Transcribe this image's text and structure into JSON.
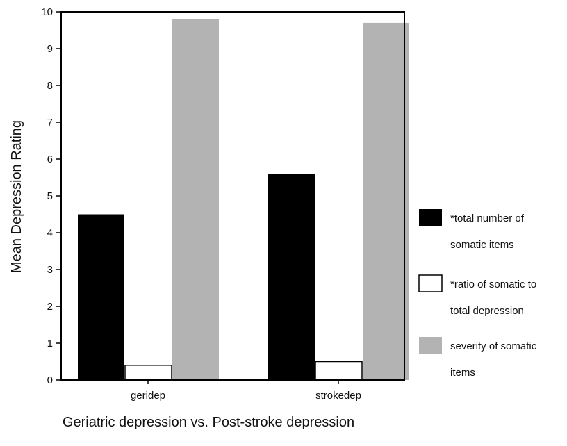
{
  "chart_data": {
    "type": "bar",
    "categories": [
      "geridep",
      "strokedep"
    ],
    "series": [
      {
        "name_lines": [
          "*total number of",
          "somatic items"
        ],
        "values": [
          4.5,
          5.6
        ],
        "color": "#000000"
      },
      {
        "name_lines": [
          "*ratio of somatic to",
          "total depression"
        ],
        "values": [
          0.4,
          0.5
        ],
        "color": "#ffffff"
      },
      {
        "name_lines": [
          "severity of somatic",
          "items"
        ],
        "values": [
          9.8,
          9.7
        ],
        "color": "#b3b3b3"
      }
    ],
    "ylabel": "Mean Depression Rating",
    "xlabel": "Geriatric depression vs. Post-stroke depression",
    "ylim": [
      0,
      10
    ],
    "yticks": [
      "0",
      "1",
      "2",
      "3",
      "4",
      "5",
      "6",
      "7",
      "8",
      "9",
      "10"
    ],
    "grid": false,
    "legend_position": "right"
  }
}
